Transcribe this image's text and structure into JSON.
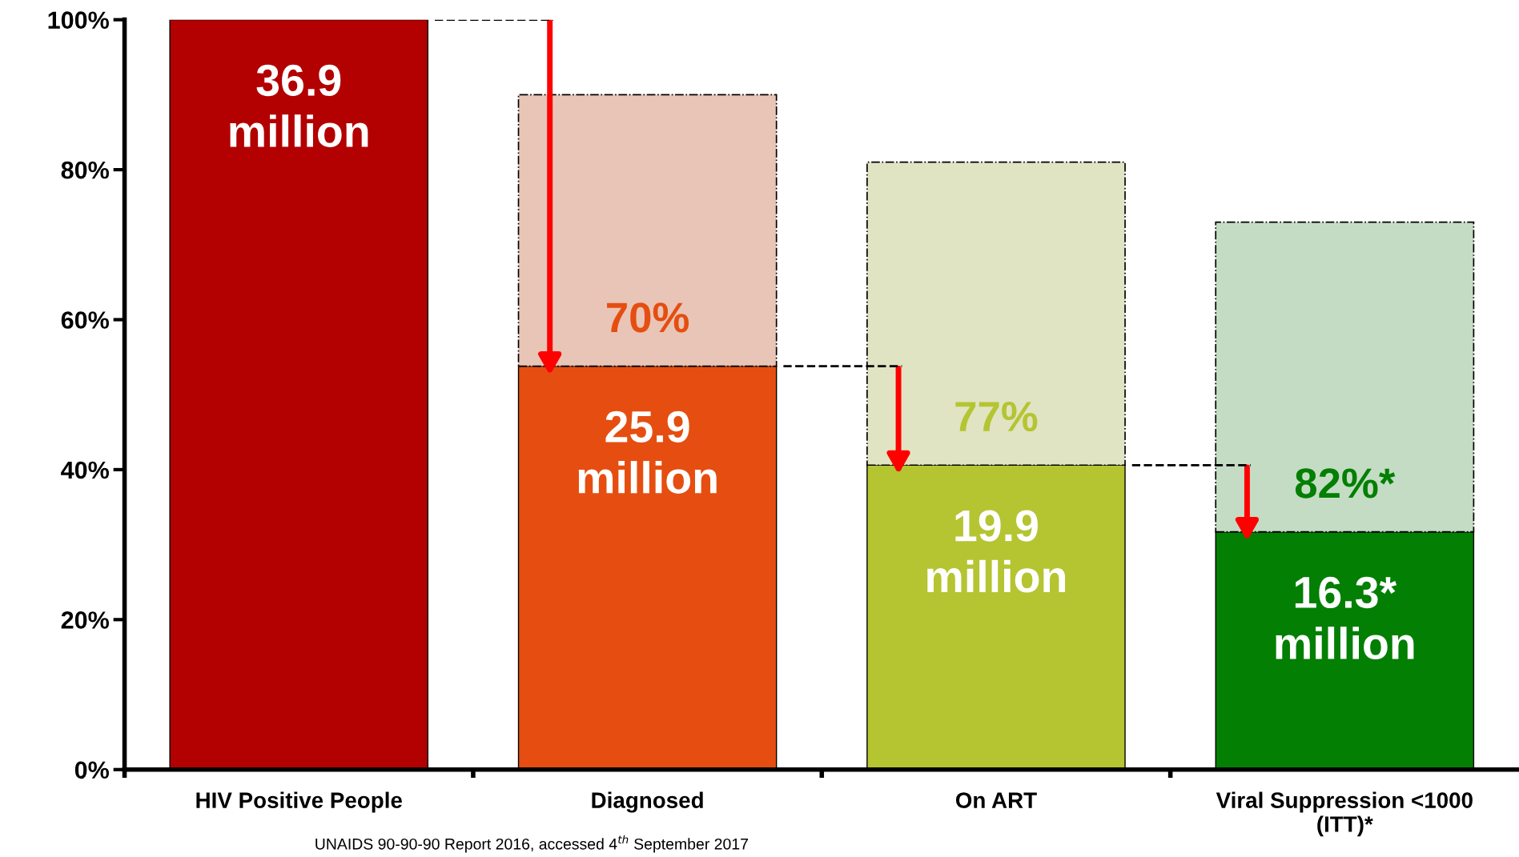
{
  "chart_data": {
    "type": "bar",
    "stacked": true,
    "categories": [
      "HIV Positive People",
      "Diagnosed",
      "On ART",
      "Viral Suppression <1000\n(ITT)*"
    ],
    "series": [
      {
        "colors": [
          "#b30000",
          "#e54e10",
          "#b5c431",
          "#037f03"
        ],
        "values": [
          100,
          53.8,
          40.6,
          31.7
        ]
      },
      {
        "colors": [
          "#b30000",
          "#e8c5b7",
          "#e0e4c3",
          "#c4dcc4"
        ],
        "values": [
          null,
          36.2,
          40.4,
          41.3
        ]
      }
    ],
    "ylim": [
      0,
      100
    ],
    "yticks": [
      {
        "value": 0,
        "label": "0%"
      },
      {
        "value": 20,
        "label": "20%"
      },
      {
        "value": 40,
        "label": "40%"
      },
      {
        "value": 60,
        "label": "60%"
      },
      {
        "value": 80,
        "label": "80%"
      },
      {
        "value": 100,
        "label": "100%"
      }
    ],
    "annotations": [
      "36.9\nmillion",
      "25.9\nmillion",
      "19.9\nmillion",
      "16.3*\nmillion",
      "70%",
      "77%",
      "82%*",
      "UNAIDS 90-90-90 Report 2016, accessed 4$^{th}$ September 2017"
    ],
    "ref_lines": [
      {
        "axis": "y",
        "value": 100,
        "color": "#000000",
        "line_style": "dashed"
      },
      {
        "axis": "y",
        "value": 53.8,
        "color": "#000000",
        "line_style": "dashed"
      },
      {
        "axis": "y",
        "value": 40.6,
        "color": "#000000",
        "line_style": "dashed"
      }
    ],
    "legend": false,
    "grid": false
  }
}
